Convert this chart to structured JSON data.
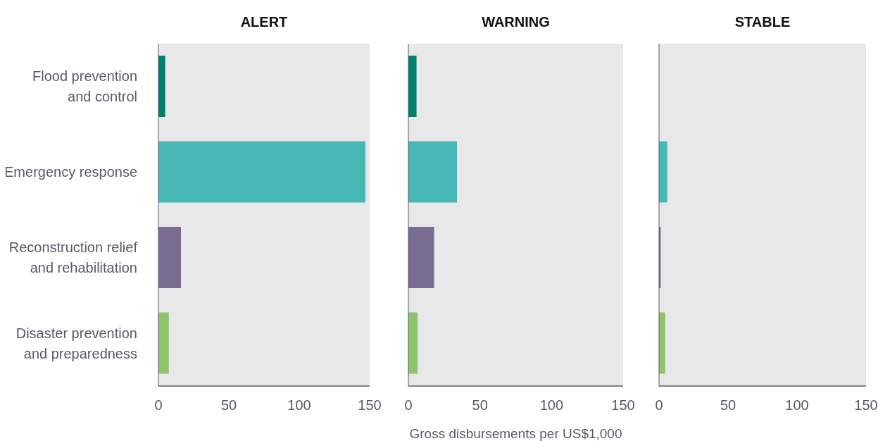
{
  "chart_data": [
    {
      "type": "bar",
      "orientation": "horizontal",
      "title": "ALERT",
      "categories": [
        "Flood prevention and control",
        "Emergency response",
        "Reconstruction relief and rehabilitation",
        "Disaster prevention and preparedness"
      ],
      "values": [
        4.8,
        147,
        16,
        7.4
      ],
      "colors": [
        "#007f6e",
        "#47b8b5",
        "#796c91",
        "#8fc46d"
      ],
      "xlim": [
        0,
        150
      ],
      "xticks": [
        0,
        50,
        100,
        150
      ]
    },
    {
      "type": "bar",
      "orientation": "horizontal",
      "title": "WARNING",
      "xlabel": "Gross disbursements per US$1,000",
      "values": [
        5.7,
        34,
        18,
        6.5
      ],
      "colors": [
        "#007f6e",
        "#47b8b5",
        "#796c91",
        "#8fc46d"
      ],
      "xlim": [
        0,
        150
      ],
      "xticks": [
        0,
        50,
        100,
        150
      ],
      "tick_labels": "x"
    },
    {
      "type": "bar",
      "orientation": "horizontal",
      "title": "STABLE",
      "values": [
        null,
        6,
        1.2,
        4.5
      ],
      "colors": [
        "#007f6e",
        "#47b8b5",
        "#796c91",
        "#8fc46d"
      ],
      "xlim": [
        0,
        150
      ],
      "xticks": [
        0,
        50,
        100,
        150
      ],
      "tick_labels": "x"
    }
  ]
}
